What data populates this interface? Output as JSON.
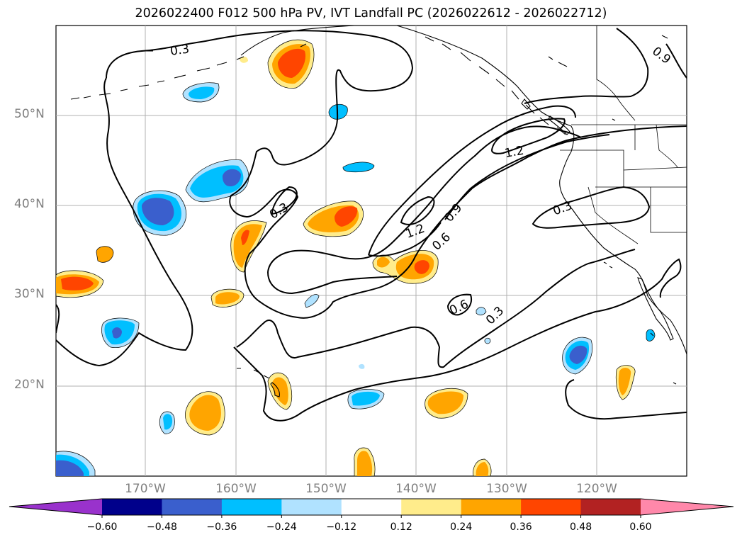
{
  "title": "2026022400 F012 500 hPa PV, IVT Landfall PC (2026022612 - 2026022712)",
  "latitude_labels": [
    "50°N",
    "40°N",
    "30°N",
    "20°N"
  ],
  "longitude_labels": [
    "170°W",
    "160°W",
    "150°W",
    "140°W",
    "130°W",
    "120°W"
  ],
  "contour_labels": [
    "0.3",
    "0.9",
    "1.2",
    "0.3",
    "1.2",
    "0.9",
    "0.6",
    "0.3",
    "0.6",
    "0.3"
  ],
  "colorbar": {
    "tick_labels": [
      "−0.60",
      "−0.48",
      "−0.36",
      "−0.24",
      "−0.12",
      "0.12",
      "0.24",
      "0.36",
      "0.48",
      "0.60"
    ],
    "colors": [
      "#9932cc",
      "#00008b",
      "#3a5fcd",
      "#00bfff",
      "#b0e2ff",
      "#ffffff",
      "#ffec8b",
      "#ffa500",
      "#ff4500",
      "#b22222",
      "#ff88aa"
    ]
  },
  "colors": {
    "land_outline": "#000000",
    "grid": "#b0b0b0",
    "tick_label": "#808080"
  }
}
